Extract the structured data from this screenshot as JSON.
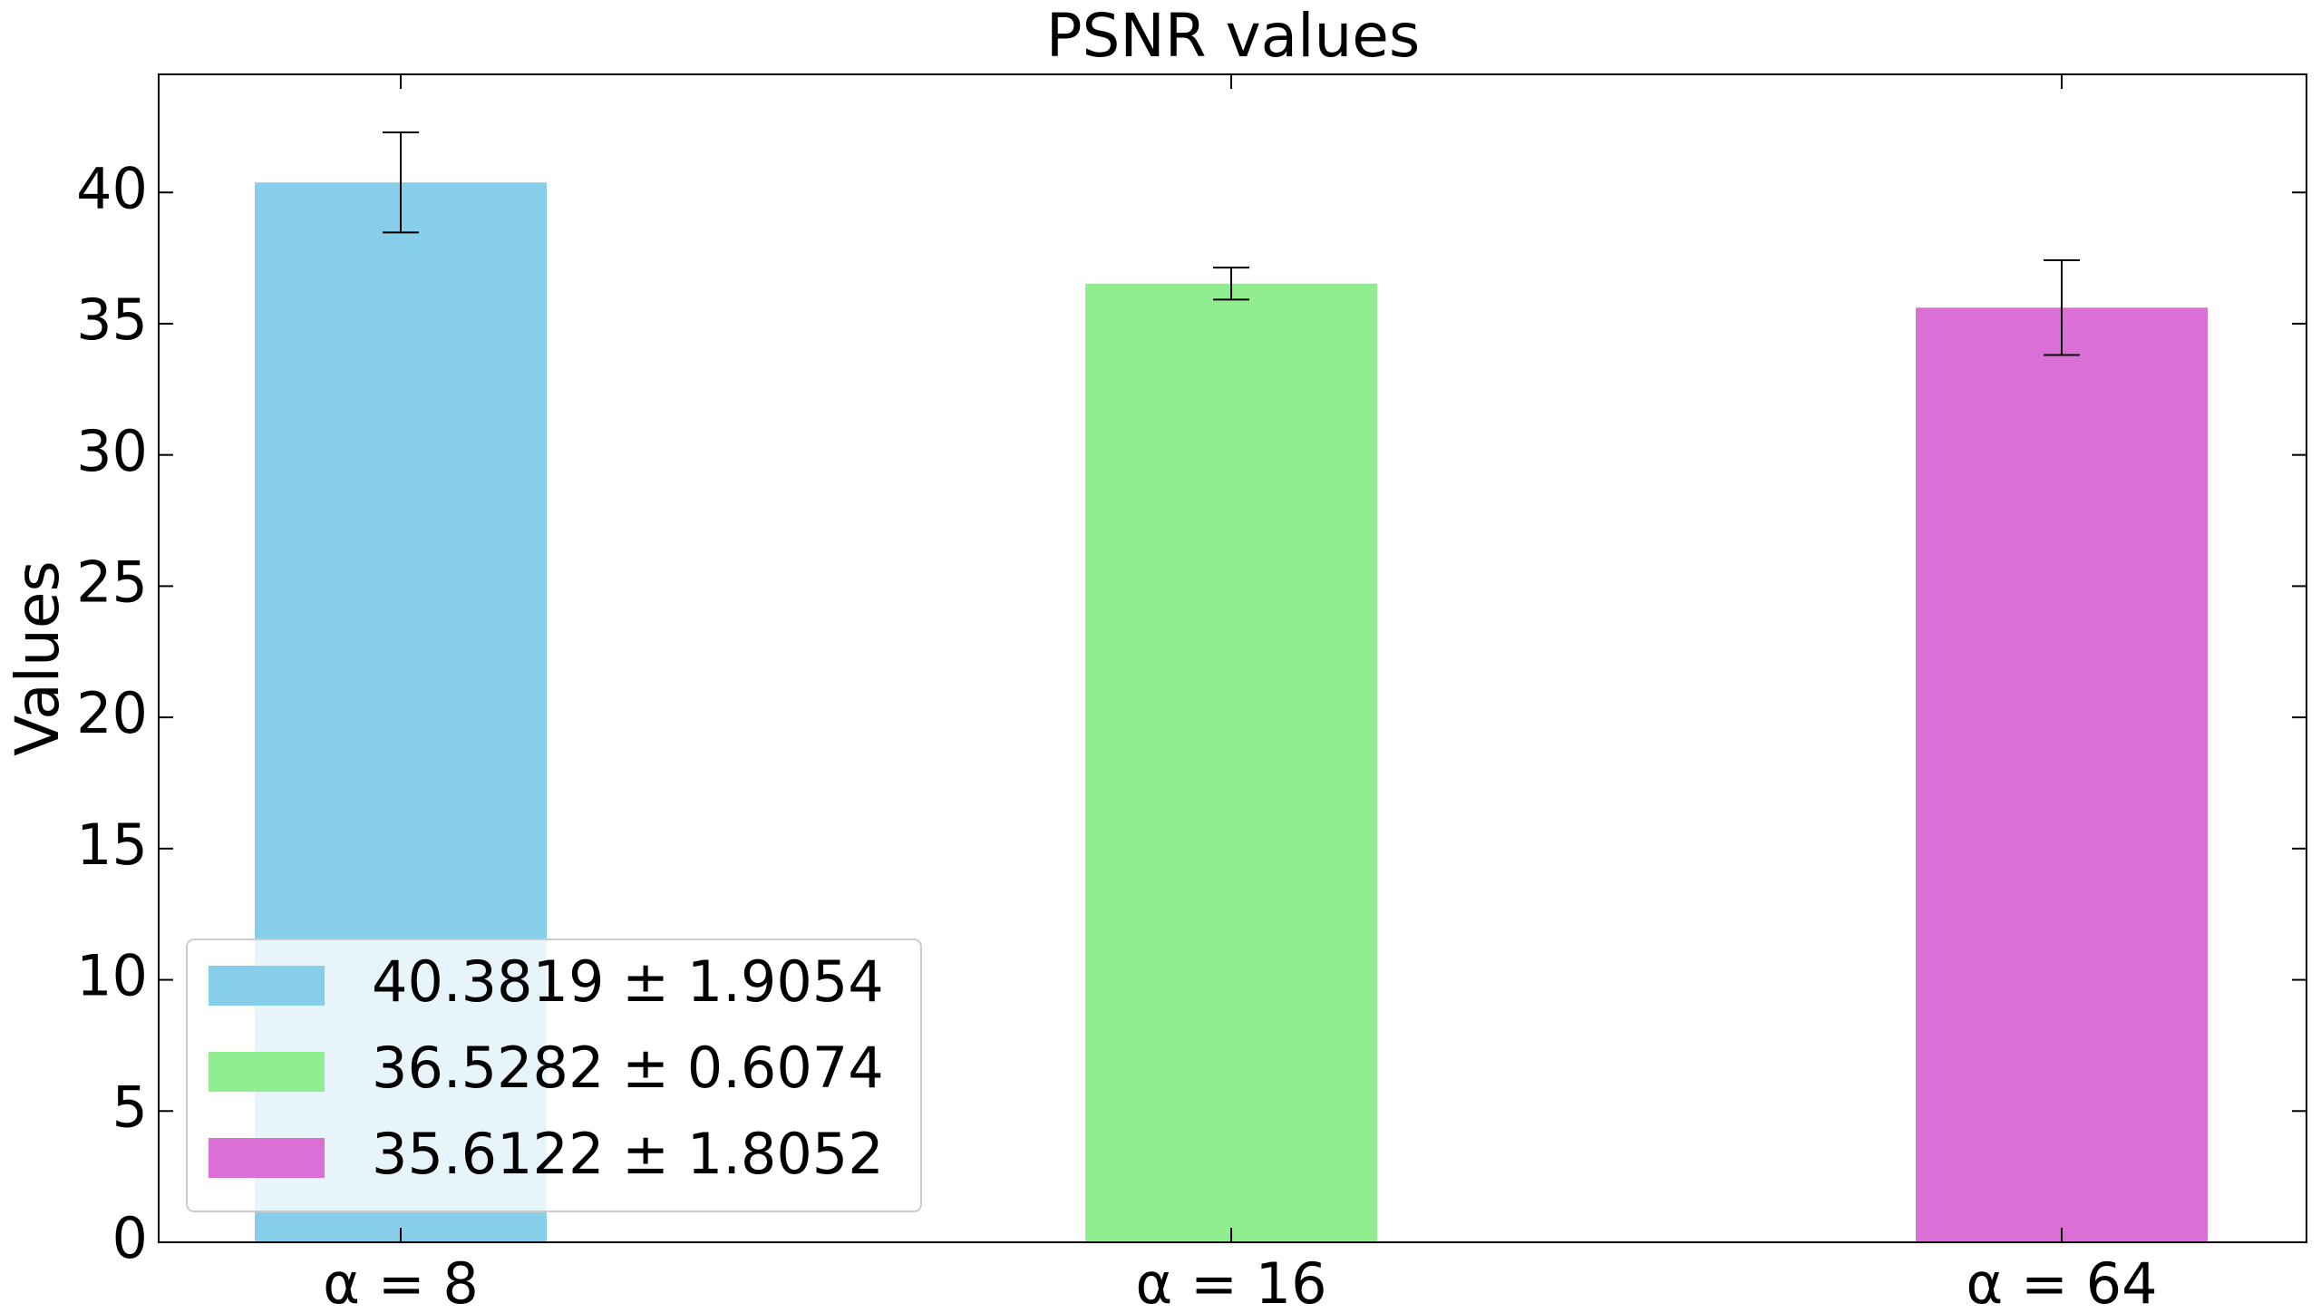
{
  "chart_data": {
    "type": "bar",
    "title": "PSNR values",
    "y_label": "Values",
    "categories": [
      "α = 8",
      "α = 16",
      "α = 64"
    ],
    "series": [
      {
        "name": "40.3819 ± 1.9054",
        "color": "#87ceeb",
        "values": [
          40.3819,
          null,
          null
        ],
        "errors": [
          1.9054,
          null,
          null
        ]
      },
      {
        "name": "36.5282 ± 0.6074",
        "color": "#90ee90",
        "values": [
          null,
          36.5282,
          null
        ],
        "errors": [
          null,
          0.6074,
          null
        ]
      },
      {
        "name": "35.6122 ± 1.8052",
        "color": "#da70d6",
        "values": [
          null,
          null,
          35.6122
        ],
        "errors": [
          null,
          null,
          1.8052
        ]
      }
    ],
    "ylim": [
      0,
      44.5
    ],
    "yticks": [
      0,
      5,
      10,
      15,
      20,
      25,
      30,
      35,
      40
    ],
    "legend_position": "lower left",
    "grid": false
  }
}
